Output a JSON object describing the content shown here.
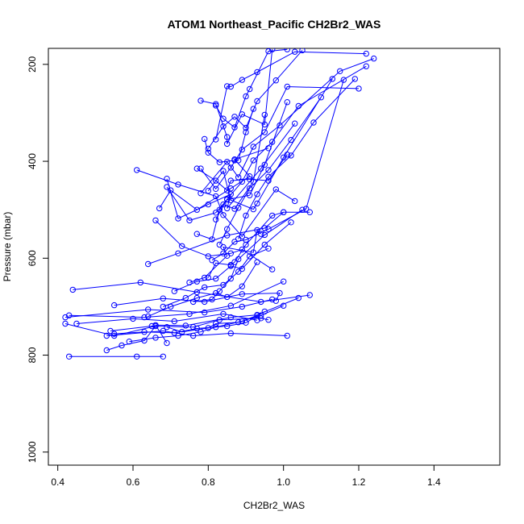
{
  "chart_data": {
    "type": "line",
    "title": "ATOM1 Northeast_Pacific CH2Br2_WAS",
    "xlabel": "CH2Br2_WAS",
    "ylabel": "Pressure (mbar)",
    "xlim": [
      0.4,
      1.6
    ],
    "ylim": [
      1000,
      180
    ],
    "y_reversed": true,
    "x_ticks": [
      0.4,
      0.6,
      0.8,
      1.0,
      1.2,
      1.4
    ],
    "x_tick_labels": [
      "0.4",
      "0.6",
      "0.8",
      "1.0",
      "1.2",
      "1.4"
    ],
    "y_ticks": [
      200,
      400,
      600,
      800,
      1000
    ],
    "y_tick_labels": [
      "200",
      "400",
      "600",
      "800",
      "1000"
    ],
    "grid": false,
    "legend": "none",
    "series_color": "#0000ff",
    "series": [
      {
        "x": [
          0.43,
          0.61,
          0.68
        ],
        "y": [
          803,
          803,
          803
        ]
      },
      {
        "x": [
          0.42,
          0.55,
          0.66,
          0.63,
          0.57,
          0.53
        ],
        "y": [
          735,
          760,
          740,
          770,
          780,
          790
        ]
      },
      {
        "x": [
          0.53,
          0.68,
          0.76,
          0.86,
          1.01
        ],
        "y": [
          760,
          750,
          760,
          755,
          760
        ]
      },
      {
        "x": [
          0.44,
          0.62,
          0.77,
          0.94,
          1.07
        ],
        "y": [
          665,
          650,
          670,
          690,
          676
        ]
      },
      {
        "x": [
          0.42,
          0.64,
          0.79,
          0.89,
          0.97
        ],
        "y": [
          722,
          706,
          712,
          700,
          685
        ]
      },
      {
        "x": [
          0.43,
          0.63,
          0.75,
          0.86,
          1.0
        ],
        "y": [
          718,
          722,
          715,
          698,
          648
        ]
      },
      {
        "x": [
          0.45,
          0.6,
          0.71,
          0.84,
          0.93
        ],
        "y": [
          735,
          725,
          730,
          715,
          728
        ]
      },
      {
        "x": [
          0.54,
          0.65,
          0.76,
          0.83,
          0.94,
          0.96
        ],
        "y": [
          750,
          740,
          742,
          727,
          724,
          727
        ]
      },
      {
        "x": [
          0.55,
          0.68,
          0.79,
          0.89,
          0.99,
          0.98
        ],
        "y": [
          697,
          683,
          690,
          674,
          672,
          688
        ]
      },
      {
        "x": [
          0.69,
          0.66,
          0.74,
          0.86,
          0.93,
          1.04
        ],
        "y": [
          775,
          738,
          739,
          722,
          717,
          682
        ]
      },
      {
        "x": [
          0.64,
          0.72,
          0.85,
          0.95,
          1.0,
          1.07
        ],
        "y": [
          612,
          590,
          553,
          538,
          505,
          505
        ]
      },
      {
        "x": [
          0.66,
          0.73,
          0.8,
          0.86,
          0.89,
          0.97
        ],
        "y": [
          522,
          575,
          596,
          590,
          582,
          623
        ]
      },
      {
        "x": [
          0.61,
          0.72,
          0.82,
          0.84,
          0.89,
          0.98,
          1.03
        ],
        "y": [
          418,
          448,
          472,
          511,
          555,
          458,
          482
        ]
      },
      {
        "x": [
          0.69,
          0.72,
          0.8,
          0.86,
          0.85,
          0.94,
          1.03
        ],
        "y": [
          436,
          518,
          489,
          468,
          497,
          415,
          322
        ]
      },
      {
        "x": [
          0.67,
          0.7,
          0.77,
          0.86,
          0.91,
          0.87,
          0.96
        ],
        "y": [
          497,
          460,
          500,
          456,
          431,
          396,
          373
        ]
      },
      {
        "x": [
          0.69,
          0.75,
          0.82,
          0.85,
          0.91,
          0.95,
          1.01
        ],
        "y": [
          453,
          522,
          506,
          479,
          470,
          407,
          278
        ]
      },
      {
        "x": [
          0.78,
          0.82,
          0.86,
          0.89,
          0.95,
          1.01,
          1.2
        ],
        "y": [
          415,
          457,
          413,
          376,
          340,
          246,
          250
        ]
      },
      {
        "x": [
          0.78,
          0.85,
          0.88,
          0.92,
          0.99,
          1.15,
          1.24
        ],
        "y": [
          466,
          401,
          433,
          370,
          326,
          214,
          188
        ]
      },
      {
        "x": [
          0.8,
          0.84,
          0.87,
          0.9,
          0.93,
          0.98,
          1.05
        ],
        "y": [
          374,
          328,
          308,
          331,
          276,
          233,
          171
        ]
      },
      {
        "x": [
          0.82,
          0.85,
          0.86,
          0.89,
          0.93,
          1.03,
          1.22
        ],
        "y": [
          355,
          245,
          246,
          232,
          216,
          174,
          178
        ]
      },
      {
        "x": [
          0.78,
          0.82,
          0.85,
          0.85,
          0.89,
          0.95,
          0.97
        ],
        "y": [
          275,
          282,
          350,
          364,
          303,
          324,
          169
        ]
      },
      {
        "x": [
          0.82,
          0.84,
          0.87,
          0.9,
          0.91,
          0.96,
          1.01
        ],
        "y": [
          285,
          312,
          330,
          266,
          251,
          173,
          169
        ]
      },
      {
        "x": [
          0.79,
          0.8,
          0.83,
          0.87,
          0.88,
          0.9,
          0.92
        ],
        "y": [
          354,
          382,
          402,
          398,
          398,
          340,
          292
        ]
      },
      {
        "x": [
          0.77,
          0.82,
          0.85,
          0.86,
          0.91,
          0.96,
          1.01
        ],
        "y": [
          415,
          440,
          460,
          440,
          437,
          440,
          386
        ]
      },
      {
        "x": [
          0.8,
          0.84,
          0.86,
          0.92,
          0.93,
          1.0,
          1.13
        ],
        "y": [
          461,
          420,
          480,
          499,
          487,
          392,
          230
        ]
      },
      {
        "x": [
          0.77,
          0.81,
          0.83,
          0.84,
          0.87,
          0.92,
          0.95
        ],
        "y": [
          550,
          561,
          500,
          489,
          498,
          442,
          304
        ]
      },
      {
        "x": [
          0.81,
          0.84,
          0.87,
          0.9,
          0.96,
          1.06,
          1.16
        ],
        "y": [
          604,
          590,
          566,
          562,
          540,
          498,
          232
        ]
      },
      {
        "x": [
          0.8,
          0.82,
          0.86,
          0.87,
          0.9,
          0.97,
          1.0
        ],
        "y": [
          640,
          610,
          614,
          608,
          572,
          512,
          505
        ]
      },
      {
        "x": [
          0.75,
          0.79,
          0.85,
          0.84,
          0.92,
          0.93,
          0.94
        ],
        "y": [
          650,
          640,
          595,
          577,
          588,
          542,
          550
        ]
      },
      {
        "x": [
          0.76,
          0.81,
          0.83,
          0.86,
          0.88,
          0.95,
          1.05
        ],
        "y": [
          690,
          685,
          668,
          642,
          602,
          552,
          500
        ]
      },
      {
        "x": [
          0.71,
          0.77,
          0.82,
          0.86,
          0.89,
          0.95,
          1.02
        ],
        "y": [
          668,
          648,
          642,
          616,
          622,
          572,
          526
        ]
      },
      {
        "x": [
          0.68,
          0.74,
          0.79,
          0.84,
          0.88,
          0.91,
          0.96
        ],
        "y": [
          700,
          682,
          660,
          655,
          628,
          596,
          580
        ]
      },
      {
        "x": [
          0.64,
          0.7,
          0.77,
          0.82,
          0.85,
          0.89,
          0.93
        ],
        "y": [
          720,
          700,
          682,
          672,
          680,
          658,
          608
        ]
      },
      {
        "x": [
          0.69,
          0.73,
          0.8,
          0.82,
          0.88,
          0.94,
          1.0
        ],
        "y": [
          742,
          752,
          744,
          735,
          732,
          718,
          698
        ]
      },
      {
        "x": [
          0.55,
          0.63,
          0.71,
          0.77,
          0.85,
          0.9,
          0.95
        ],
        "y": [
          756,
          752,
          754,
          745,
          740,
          733,
          710
        ]
      },
      {
        "x": [
          0.59,
          0.66,
          0.72,
          0.78,
          0.82,
          0.89,
          0.93
        ],
        "y": [
          772,
          764,
          760,
          752,
          742,
          730,
          718
        ]
      },
      {
        "x": [
          0.82,
          0.85,
          0.89,
          0.92,
          0.97,
          1.04,
          1.22
        ],
        "y": [
          520,
          478,
          442,
          398,
          360,
          286,
          204
        ]
      },
      {
        "x": [
          0.88,
          0.9,
          0.93,
          0.96,
          1.02,
          1.08,
          1.19
        ],
        "y": [
          560,
          512,
          468,
          432,
          388,
          320,
          230
        ]
      },
      {
        "x": [
          0.83,
          0.85,
          0.88,
          0.91,
          0.96,
          1.02,
          1.1
        ],
        "y": [
          572,
          540,
          496,
          456,
          418,
          356,
          268
        ]
      }
    ]
  }
}
